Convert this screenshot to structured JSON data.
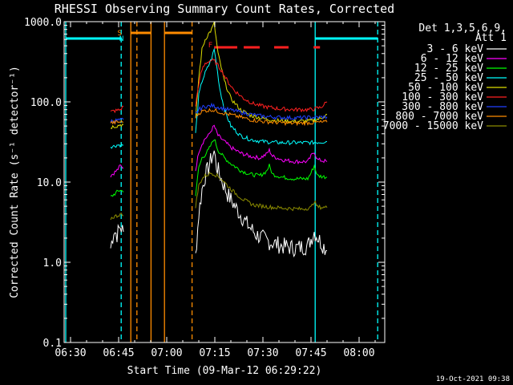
{
  "chart_data": {
    "type": "line",
    "title": "RHESSI Observing Summary Count Rates, Corrected",
    "xlabel": "Start Time (09-Mar-12 06:29:22)",
    "ylabel": "Corrected Count Rate (s⁻¹ detector⁻¹)",
    "y_scale": "log",
    "ylim": [
      0.1,
      1000
    ],
    "xlim_minutes": [
      -2,
      98
    ],
    "x_ticks": [
      {
        "label": "06:30",
        "minute": 0
      },
      {
        "label": "06:45",
        "minute": 15
      },
      {
        "label": "07:00",
        "minute": 30
      },
      {
        "label": "07:15",
        "minute": 45
      },
      {
        "label": "07:30",
        "minute": 60
      },
      {
        "label": "07:45",
        "minute": 75
      },
      {
        "label": "08:00",
        "minute": 90
      }
    ],
    "y_ticks": [
      {
        "label": "0.1",
        "value": 0.1
      },
      {
        "label": "1.0",
        "value": 1
      },
      {
        "label": "10.0",
        "value": 10
      },
      {
        "label": "100.0",
        "value": 100
      },
      {
        "label": "1000.0",
        "value": 1000
      }
    ],
    "legend": {
      "position": "right",
      "header_line1": "Det 1,3,5,6,9,",
      "header_line2": "Att 1",
      "entries": [
        {
          "label": "3 - 6 keV",
          "color": "#ffffff"
        },
        {
          "label": "6 - 12 keV",
          "color": "#ff00ff"
        },
        {
          "label": "12 - 25 keV",
          "color": "#00ff00"
        },
        {
          "label": "25 - 50 keV",
          "color": "#00ffff"
        },
        {
          "label": "50 - 100 keV",
          "color": "#dddd00"
        },
        {
          "label": "100 - 300 keV",
          "color": "#ff2020"
        },
        {
          "label": "300 - 800 keV",
          "color": "#2040ff"
        },
        {
          "label": "800 - 7000 keV",
          "color": "#ff8c00"
        },
        {
          "label": "7000 - 15000 keV",
          "color": "#8b8b00"
        }
      ]
    },
    "series": [
      {
        "name": "3 - 6 keV",
        "color": "#ffffff",
        "segments": [
          [
            [
              12.5,
              1.5
            ],
            [
              13.5,
              2.5
            ],
            [
              14.5,
              2.2
            ],
            [
              15.5,
              2.8
            ],
            [
              16.5,
              2.4
            ]
          ],
          [
            [
              39,
              1.2
            ],
            [
              40,
              4
            ],
            [
              41,
              8
            ],
            [
              42,
              12
            ],
            [
              43,
              15
            ],
            [
              44,
              20
            ],
            [
              44.8,
              24
            ],
            [
              45.5,
              16
            ],
            [
              47,
              11
            ],
            [
              49,
              7
            ],
            [
              52,
              4.5
            ],
            [
              55,
              3
            ],
            [
              58,
              2.2
            ],
            [
              62,
              1.8
            ],
            [
              66,
              1.6
            ],
            [
              70,
              1.5
            ],
            [
              74,
              1.6
            ],
            [
              76,
              2.4
            ],
            [
              78,
              1.8
            ],
            [
              80,
              1.4
            ]
          ]
        ]
      },
      {
        "name": "6 - 12 keV",
        "color": "#ff00ff",
        "segments": [
          [
            [
              12.5,
              12
            ],
            [
              13.5,
              13
            ],
            [
              14.5,
              14
            ],
            [
              15.5,
              16
            ],
            [
              16.5,
              15
            ]
          ],
          [
            [
              39,
              14
            ],
            [
              40,
              24
            ],
            [
              41,
              30
            ],
            [
              42,
              35
            ],
            [
              43,
              38
            ],
            [
              44,
              45
            ],
            [
              44.8,
              50
            ],
            [
              46,
              38
            ],
            [
              48,
              32
            ],
            [
              50,
              27
            ],
            [
              53,
              23
            ],
            [
              56,
              21
            ],
            [
              59,
              20
            ],
            [
              61,
              22
            ],
            [
              62,
              25
            ],
            [
              63,
              21
            ],
            [
              66,
              19
            ],
            [
              70,
              18
            ],
            [
              74,
              18
            ],
            [
              75,
              21
            ],
            [
              76,
              24
            ],
            [
              77,
              19
            ],
            [
              80,
              18
            ]
          ]
        ]
      },
      {
        "name": "12 - 25 keV",
        "color": "#00ff00",
        "segments": [
          [
            [
              12.5,
              6.5
            ],
            [
              13.5,
              7
            ],
            [
              14.5,
              7.5
            ],
            [
              15.5,
              8
            ],
            [
              16.5,
              7.5
            ]
          ],
          [
            [
              39,
              7
            ],
            [
              40,
              15
            ],
            [
              41,
              20
            ],
            [
              42,
              22
            ],
            [
              43,
              25
            ],
            [
              44,
              30
            ],
            [
              44.8,
              35
            ],
            [
              46,
              25
            ],
            [
              48,
              20
            ],
            [
              50,
              17
            ],
            [
              53,
              14
            ],
            [
              56,
              12.5
            ],
            [
              59,
              12
            ],
            [
              61,
              13.5
            ],
            [
              62,
              16
            ],
            [
              63,
              12.5
            ],
            [
              66,
              11.5
            ],
            [
              70,
              11
            ],
            [
              74,
              11
            ],
            [
              75,
              13
            ],
            [
              76,
              16
            ],
            [
              77,
              12
            ],
            [
              80,
              11.5
            ]
          ]
        ]
      },
      {
        "name": "25 - 50 keV",
        "color": "#00ffff",
        "segments": [
          [
            [
              12.5,
              28
            ],
            [
              13.5,
              28
            ],
            [
              14.5,
              29
            ],
            [
              15.5,
              29
            ],
            [
              16.5,
              29
            ]
          ],
          [
            [
              39,
              40
            ],
            [
              40,
              120
            ],
            [
              41,
              180
            ],
            [
              42,
              230
            ],
            [
              43,
              280
            ],
            [
              44,
              350
            ],
            [
              44.8,
              450
            ],
            [
              45.5,
              300
            ],
            [
              46.5,
              150
            ],
            [
              48,
              80
            ],
            [
              50,
              50
            ],
            [
              53,
              38
            ],
            [
              56,
              34
            ],
            [
              60,
              32
            ],
            [
              65,
              31
            ],
            [
              70,
              31
            ],
            [
              75,
              31
            ],
            [
              80,
              32
            ]
          ]
        ]
      },
      {
        "name": "50 - 100 keV",
        "color": "#dddd00",
        "segments": [
          [
            [
              12.5,
              48
            ],
            [
              13.5,
              50
            ],
            [
              14.5,
              50
            ],
            [
              15.5,
              52
            ],
            [
              16.5,
              52
            ]
          ],
          [
            [
              39,
              60
            ],
            [
              40,
              200
            ],
            [
              41,
              450
            ],
            [
              42,
              600
            ],
            [
              43,
              700
            ],
            [
              44,
              800
            ],
            [
              44.8,
              950
            ],
            [
              46,
              400
            ],
            [
              48,
              180
            ],
            [
              50,
              110
            ],
            [
              53,
              80
            ],
            [
              56,
              68
            ],
            [
              60,
              62
            ],
            [
              65,
              58
            ],
            [
              70,
              57
            ],
            [
              75,
              58
            ],
            [
              78,
              62
            ],
            [
              80,
              70
            ]
          ]
        ]
      },
      {
        "name": "100 - 300 keV",
        "color": "#ff2020",
        "segments": [
          [
            [
              12.5,
              75
            ],
            [
              13.5,
              77
            ],
            [
              14.5,
              78
            ],
            [
              15.5,
              80
            ],
            [
              16.5,
              88
            ]
          ],
          [
            [
              39,
              90
            ],
            [
              40,
              170
            ],
            [
              41,
              250
            ],
            [
              42,
              300
            ],
            [
              43,
              320
            ],
            [
              44,
              330
            ],
            [
              45,
              320
            ],
            [
              47,
              250
            ],
            [
              49,
              180
            ],
            [
              51,
              140
            ],
            [
              54,
              110
            ],
            [
              57,
              95
            ],
            [
              60,
              88
            ],
            [
              65,
              82
            ],
            [
              70,
              80
            ],
            [
              75,
              80
            ],
            [
              78,
              85
            ],
            [
              80,
              100
            ]
          ]
        ]
      },
      {
        "name": "300 - 800 keV",
        "color": "#2040ff",
        "segments": [
          [
            [
              12.5,
              58
            ],
            [
              13.5,
              58
            ],
            [
              14.5,
              59
            ],
            [
              15.5,
              59
            ],
            [
              16.5,
              60
            ]
          ],
          [
            [
              39,
              70
            ],
            [
              40,
              80
            ],
            [
              41,
              85
            ],
            [
              42,
              88
            ],
            [
              43,
              88
            ],
            [
              44,
              90
            ],
            [
              45,
              88
            ],
            [
              48,
              82
            ],
            [
              52,
              76
            ],
            [
              56,
              70
            ],
            [
              60,
              66
            ],
            [
              65,
              64
            ],
            [
              70,
              63
            ],
            [
              75,
              64
            ],
            [
              80,
              65
            ]
          ]
        ]
      },
      {
        "name": "800 - 7000 keV",
        "color": "#ff8c00",
        "segments": [
          [
            [
              12.5,
              55
            ],
            [
              13.5,
              55
            ],
            [
              14.5,
              56
            ],
            [
              15.5,
              56
            ],
            [
              16.5,
              56
            ]
          ],
          [
            [
              39,
              65
            ],
            [
              40,
              72
            ],
            [
              41,
              76
            ],
            [
              42,
              78
            ],
            [
              43,
              78
            ],
            [
              44,
              80
            ],
            [
              45,
              78
            ],
            [
              48,
              72
            ],
            [
              52,
              66
            ],
            [
              56,
              60
            ],
            [
              60,
              57
            ],
            [
              65,
              55
            ],
            [
              70,
              54
            ],
            [
              75,
              55
            ],
            [
              80,
              56
            ]
          ]
        ]
      },
      {
        "name": "7000 - 15000 keV",
        "color": "#8b8b00",
        "segments": [
          [
            [
              12.5,
              3.5
            ],
            [
              13.5,
              3.7
            ],
            [
              14.5,
              3.8
            ],
            [
              15.5,
              4
            ],
            [
              16.5,
              3.8
            ]
          ],
          [
            [
              39,
              5
            ],
            [
              40,
              9
            ],
            [
              41,
              11
            ],
            [
              42,
              12
            ],
            [
              43,
              12.5
            ],
            [
              44,
              13
            ],
            [
              45,
              12.5
            ],
            [
              47,
              11
            ],
            [
              49,
              9
            ],
            [
              51,
              7.5
            ],
            [
              54,
              6
            ],
            [
              57,
              5.2
            ],
            [
              60,
              5
            ],
            [
              64,
              4.8
            ],
            [
              68,
              4.7
            ],
            [
              72,
              4.6
            ],
            [
              75,
              4.8
            ],
            [
              76,
              5.8
            ],
            [
              77,
              4.9
            ],
            [
              80,
              4.8
            ]
          ]
        ]
      }
    ],
    "saa_intervals": [
      [
        -1.5,
        15.8
      ],
      [
        76.3,
        95.8
      ]
    ],
    "night_intervals": [
      [
        18.8,
        25.1
      ],
      [
        29.3,
        37.9
      ]
    ],
    "flare_intervals": [
      [
        44.8,
        52
      ],
      [
        54,
        59
      ],
      [
        63.5,
        68
      ],
      [
        75.8,
        77.8
      ]
    ],
    "vertical_markers": [
      {
        "minute": -1.5,
        "color": "#00ffff",
        "style": "solid"
      },
      {
        "minute": 15.8,
        "color": "#00ffff",
        "style": "dashed"
      },
      {
        "minute": 76.3,
        "color": "#00ffff",
        "style": "solid"
      },
      {
        "minute": 95.8,
        "color": "#00ffff",
        "style": "dashed"
      },
      {
        "minute": 18.8,
        "color": "#ff8c00",
        "style": "solid"
      },
      {
        "minute": 20.7,
        "color": "#ff8c00",
        "style": "dashed"
      },
      {
        "minute": 25.1,
        "color": "#ff8c00",
        "style": "solid"
      },
      {
        "minute": 29.3,
        "color": "#ff8c00",
        "style": "solid"
      },
      {
        "minute": 37.9,
        "color": "#ff8c00",
        "style": "dashed"
      }
    ],
    "bar_labels": [
      {
        "text": "S",
        "minute": 15.3,
        "color": "#ff8c00"
      },
      {
        "text": "N",
        "minute": 15.9,
        "color": "#00ffff"
      },
      {
        "text": "F",
        "minute": 43.6,
        "color": "#ff2020"
      }
    ],
    "footer_date": "19-Oct-2021 09:38"
  }
}
